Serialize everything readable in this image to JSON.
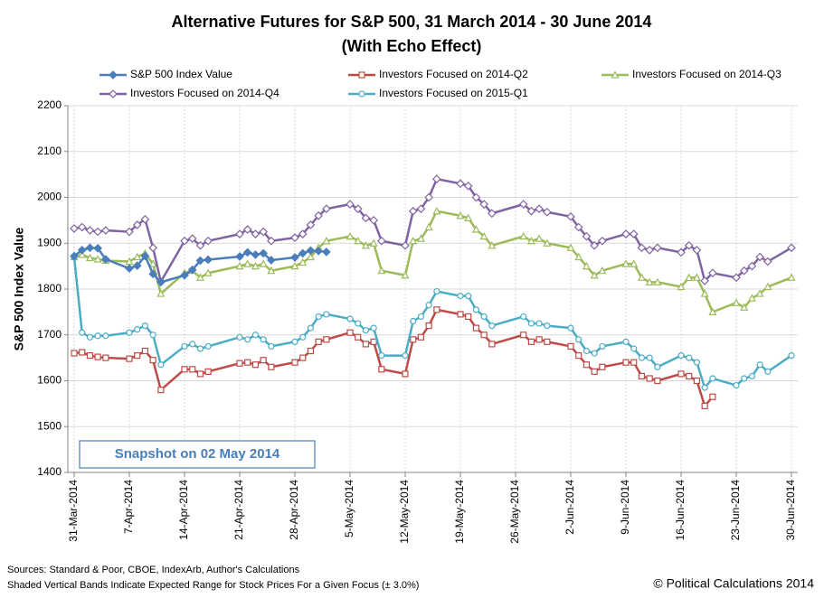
{
  "chart_data": {
    "type": "line",
    "title": "Alternative Futures for S&P 500, 31 March 2014 - 30 June 2014",
    "subtitle": "(With Echo Effect)",
    "y_label": "S&P 500 Index Value",
    "annotation": "Snapshot on 02 May 2014",
    "footnotes": [
      "Sources: Standard & Poor, CBOE, IndexArb, Author's Calculations",
      "Shaded Vertical Bands Indicate Expected Range for Stock Prices For a Given Focus (± 3.0%)"
    ],
    "credit": "© Political Calculations 2014",
    "grid": true,
    "ylim": [
      1400,
      2200
    ],
    "yticks": [
      1400,
      1500,
      1600,
      1700,
      1800,
      1900,
      2000,
      2100,
      2200
    ],
    "xlim": [
      "2014-03-31",
      "2014-06-30"
    ],
    "xticks": [
      {
        "value": "2014-03-31",
        "label": "31-Mar-2014"
      },
      {
        "value": "2014-04-07",
        "label": "7-Apr-2014"
      },
      {
        "value": "2014-04-14",
        "label": "14-Apr-2014"
      },
      {
        "value": "2014-04-21",
        "label": "21-Apr-2014"
      },
      {
        "value": "2014-04-28",
        "label": "28-Apr-2014"
      },
      {
        "value": "2014-05-05",
        "label": "5-May-2014"
      },
      {
        "value": "2014-05-12",
        "label": "12-May-2014"
      },
      {
        "value": "2014-05-19",
        "label": "19-May-2014"
      },
      {
        "value": "2014-05-26",
        "label": "26-May-2014"
      },
      {
        "value": "2014-06-02",
        "label": "2-Jun-2014"
      },
      {
        "value": "2014-06-09",
        "label": "9-Jun-2014"
      },
      {
        "value": "2014-06-16",
        "label": "16-Jun-2014"
      },
      {
        "value": "2014-06-23",
        "label": "23-Jun-2014"
      },
      {
        "value": "2014-06-30",
        "label": "30-Jun-2014"
      }
    ],
    "x": [
      "2014-03-31",
      "2014-04-01",
      "2014-04-02",
      "2014-04-03",
      "2014-04-04",
      "2014-04-07",
      "2014-04-08",
      "2014-04-09",
      "2014-04-10",
      "2014-04-11",
      "2014-04-14",
      "2014-04-15",
      "2014-04-16",
      "2014-04-17",
      "2014-04-21",
      "2014-04-22",
      "2014-04-23",
      "2014-04-24",
      "2014-04-25",
      "2014-04-28",
      "2014-04-29",
      "2014-04-30",
      "2014-05-01",
      "2014-05-02",
      "2014-05-05",
      "2014-05-06",
      "2014-05-07",
      "2014-05-08",
      "2014-05-09",
      "2014-05-12",
      "2014-05-13",
      "2014-05-14",
      "2014-05-15",
      "2014-05-16",
      "2014-05-19",
      "2014-05-20",
      "2014-05-21",
      "2014-05-22",
      "2014-05-23",
      "2014-05-27",
      "2014-05-28",
      "2014-05-29",
      "2014-05-30",
      "2014-06-02",
      "2014-06-03",
      "2014-06-04",
      "2014-06-05",
      "2014-06-06",
      "2014-06-09",
      "2014-06-10",
      "2014-06-11",
      "2014-06-12",
      "2014-06-13",
      "2014-06-16",
      "2014-06-17",
      "2014-06-18",
      "2014-06-19",
      "2014-06-20",
      "2014-06-23",
      "2014-06-24",
      "2014-06-25",
      "2014-06-26",
      "2014-06-27",
      "2014-06-30"
    ],
    "series": [
      {
        "name": "S&P 500 Index Value",
        "color": "#4a7ebb",
        "marker": "diamond",
        "marker_filled": true,
        "values": [
          1872,
          1885,
          1890,
          1889,
          1865,
          1845,
          1851,
          1872,
          1833,
          1815,
          1830,
          1842,
          1862,
          1864,
          1871,
          1880,
          1875,
          1878,
          1863,
          1869,
          1878,
          1884,
          1883,
          1881,
          null,
          null,
          null,
          null,
          null,
          null,
          null,
          null,
          null,
          null,
          null,
          null,
          null,
          null,
          null,
          null,
          null,
          null,
          null,
          null,
          null,
          null,
          null,
          null,
          null,
          null,
          null,
          null,
          null,
          null,
          null,
          null,
          null,
          null,
          null,
          null,
          null,
          null,
          null,
          null
        ]
      },
      {
        "name": "Investors Focused on 2014-Q2",
        "color": "#be4b48",
        "marker": "square",
        "marker_filled": false,
        "values": [
          1660,
          1662,
          1655,
          1652,
          1650,
          1648,
          1655,
          1665,
          1645,
          1580,
          1625,
          1625,
          1615,
          1620,
          1638,
          1640,
          1635,
          1645,
          1630,
          1640,
          1650,
          1665,
          1685,
          1690,
          1705,
          1695,
          1680,
          1685,
          1625,
          1615,
          1690,
          1695,
          1720,
          1755,
          1745,
          1740,
          1715,
          1700,
          1680,
          1700,
          1685,
          1690,
          1685,
          1675,
          1655,
          1635,
          1620,
          1630,
          1640,
          1640,
          1610,
          1605,
          1600,
          1615,
          1610,
          1600,
          1545,
          1565,
          null,
          null,
          null,
          null,
          null,
          null
        ]
      },
      {
        "name": "Investors Focused on 2014-Q3",
        "color": "#9bbb59",
        "marker": "triangle",
        "marker_filled": false,
        "values": [
          1870,
          1875,
          1868,
          1865,
          1862,
          1860,
          1870,
          1878,
          1855,
          1790,
          1835,
          1840,
          1825,
          1835,
          1850,
          1855,
          1850,
          1855,
          1840,
          1850,
          1858,
          1870,
          1890,
          1905,
          1915,
          1905,
          1895,
          1900,
          1840,
          1830,
          1905,
          1910,
          1935,
          1970,
          1960,
          1955,
          1930,
          1915,
          1895,
          1915,
          1905,
          1910,
          1900,
          1890,
          1870,
          1850,
          1830,
          1840,
          1855,
          1855,
          1825,
          1815,
          1815,
          1805,
          1825,
          1825,
          1790,
          1750,
          1770,
          1760,
          1780,
          1790,
          1805,
          1825
        ]
      },
      {
        "name": "Investors Focused on 2014-Q4",
        "color": "#8064a2",
        "marker": "diamond",
        "marker_filled": false,
        "values": [
          1932,
          1935,
          1928,
          1925,
          1928,
          1925,
          1940,
          1952,
          1890,
          1816,
          1905,
          1910,
          1895,
          1905,
          1920,
          1930,
          1920,
          1925,
          1905,
          1912,
          1920,
          1940,
          1960,
          1975,
          1985,
          1975,
          1955,
          1950,
          1905,
          1895,
          1970,
          1975,
          2000,
          2040,
          2030,
          2025,
          2000,
          1985,
          1965,
          1985,
          1970,
          1975,
          1968,
          1958,
          1935,
          1915,
          1895,
          1905,
          1920,
          1920,
          1890,
          1885,
          1890,
          1880,
          1895,
          1885,
          1818,
          1835,
          1825,
          1840,
          1850,
          1870,
          1860,
          1890
        ]
      },
      {
        "name": "Investors Focused on 2015-Q1",
        "color": "#4bacc6",
        "marker": "circle",
        "marker_filled": false,
        "values": [
          1870,
          1705,
          1695,
          1698,
          1698,
          1705,
          1712,
          1720,
          1700,
          1635,
          1675,
          1680,
          1670,
          1675,
          1695,
          1690,
          1700,
          1690,
          1675,
          1685,
          1695,
          1715,
          1740,
          1745,
          1735,
          1725,
          1710,
          1715,
          1655,
          1655,
          1730,
          1740,
          1765,
          1795,
          1785,
          1785,
          1755,
          1740,
          1720,
          1740,
          1725,
          1725,
          1720,
          1715,
          1690,
          1665,
          1660,
          1675,
          1685,
          1670,
          1650,
          1650,
          1630,
          1655,
          1650,
          1640,
          1585,
          1605,
          1590,
          1605,
          1610,
          1635,
          1620,
          1655
        ]
      }
    ]
  }
}
